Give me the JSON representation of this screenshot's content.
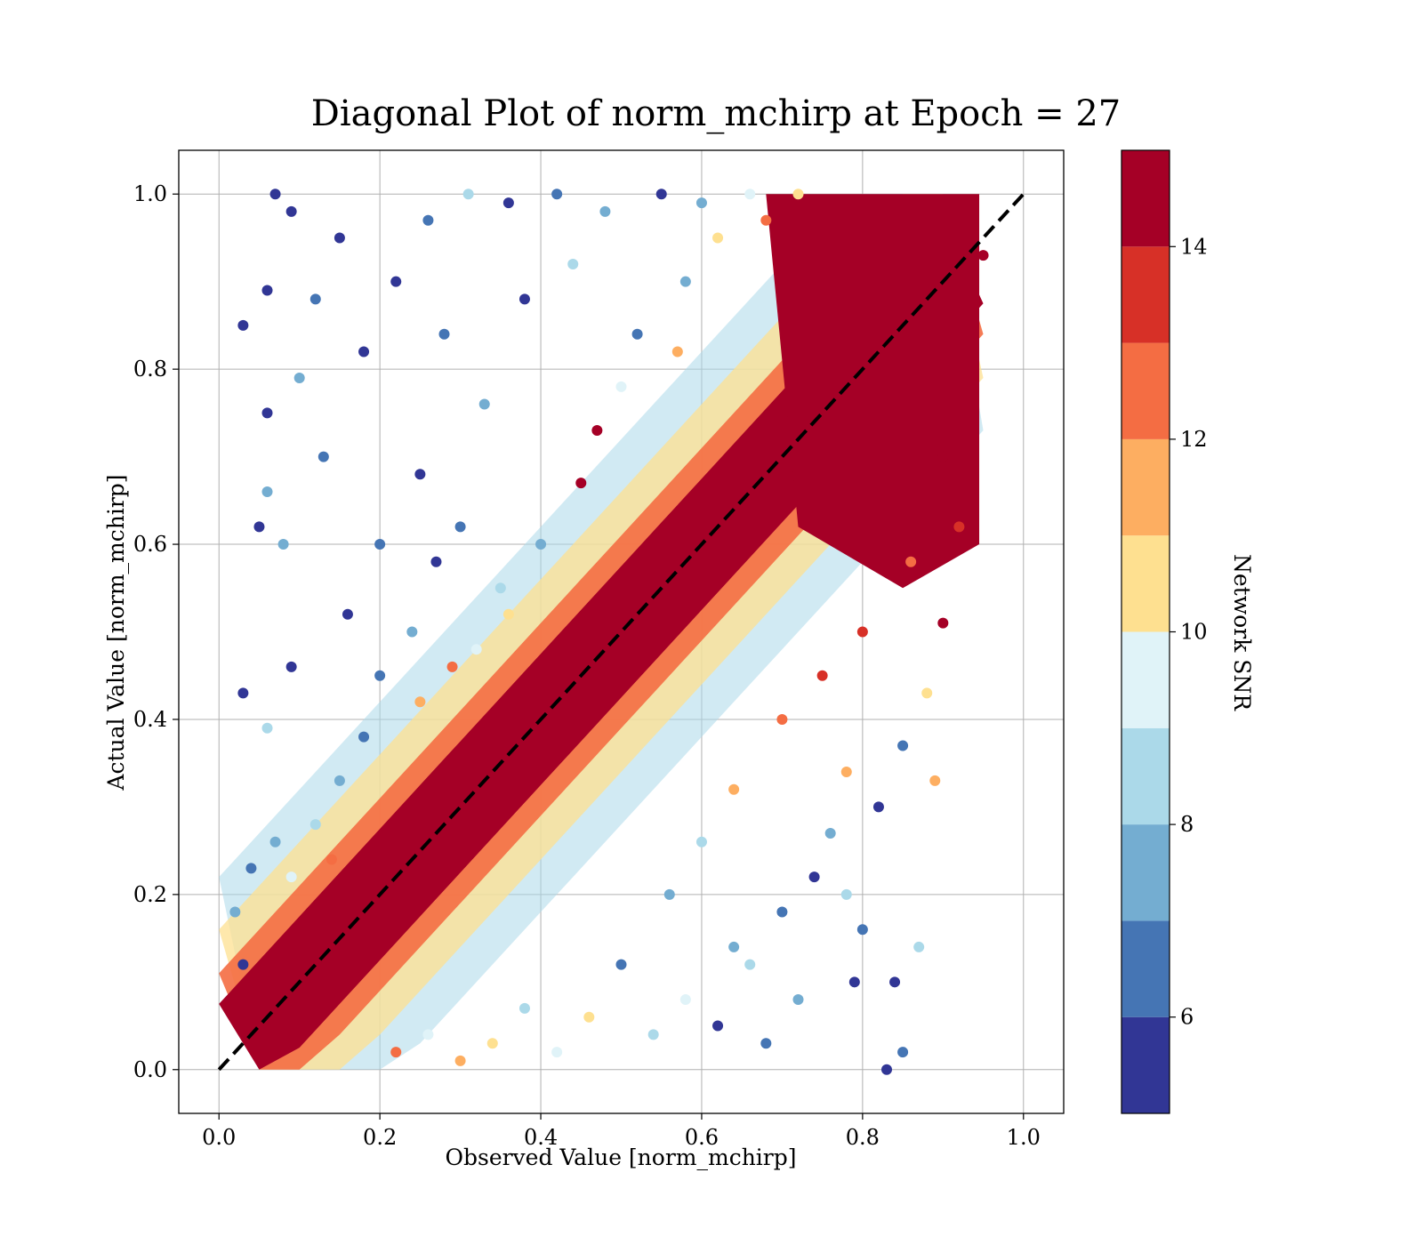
{
  "chart_data": {
    "type": "scatter",
    "title": "Diagonal Plot of norm_mchirp at Epoch = 27",
    "xlabel": "Observed Value [norm_mchirp]",
    "ylabel": "Actual Value [norm_mchirp]",
    "xlim": [
      -0.05,
      1.05
    ],
    "ylim": [
      -0.05,
      1.05
    ],
    "x_ticks": [
      "0.0",
      "0.2",
      "0.4",
      "0.6",
      "0.8",
      "1.0"
    ],
    "y_ticks": [
      "0.0",
      "0.2",
      "0.4",
      "0.6",
      "0.8",
      "1.0"
    ],
    "grid": true,
    "reference_line": {
      "style": "dashed",
      "color": "#000000",
      "from": [
        0,
        0
      ],
      "to": [
        1,
        1
      ]
    },
    "colorbar": {
      "label": "Network SNR",
      "range": [
        5,
        15
      ],
      "ticks": [
        "6",
        "8",
        "10",
        "12",
        "14"
      ],
      "levels": [
        {
          "from": 5,
          "to": 6,
          "color": "#313695"
        },
        {
          "from": 6,
          "to": 7,
          "color": "#4575b4"
        },
        {
          "from": 7,
          "to": 8,
          "color": "#74add1"
        },
        {
          "from": 8,
          "to": 9,
          "color": "#abd9e9"
        },
        {
          "from": 9,
          "to": 10,
          "color": "#e0f3f8"
        },
        {
          "from": 10,
          "to": 11,
          "color": "#fee090"
        },
        {
          "from": 11,
          "to": 12,
          "color": "#fdae61"
        },
        {
          "from": 12,
          "to": 13,
          "color": "#f46d43"
        },
        {
          "from": 13,
          "to": 14,
          "color": "#d73027"
        },
        {
          "from": 14,
          "to": 15,
          "color": "#a50026"
        }
      ]
    },
    "points": [
      {
        "x": 0.06,
        "y": 0.89,
        "snr": 5.5
      },
      {
        "x": 0.03,
        "y": 0.85,
        "snr": 5.5
      },
      {
        "x": 0.09,
        "y": 0.98,
        "snr": 5.5
      },
      {
        "x": 0.07,
        "y": 1.0,
        "snr": 5.5
      },
      {
        "x": 0.1,
        "y": 0.79,
        "snr": 7.5
      },
      {
        "x": 0.06,
        "y": 0.66,
        "snr": 7.5
      },
      {
        "x": 0.08,
        "y": 0.6,
        "snr": 7.5
      },
      {
        "x": 0.06,
        "y": 0.75,
        "snr": 5.5
      },
      {
        "x": 0.05,
        "y": 0.62,
        "snr": 5.5
      },
      {
        "x": 0.03,
        "y": 0.43,
        "snr": 5.5
      },
      {
        "x": 0.06,
        "y": 0.39,
        "snr": 8.5
      },
      {
        "x": 0.09,
        "y": 0.46,
        "snr": 5.5
      },
      {
        "x": 0.04,
        "y": 0.23,
        "snr": 6.5
      },
      {
        "x": 0.07,
        "y": 0.26,
        "snr": 7.5
      },
      {
        "x": 0.02,
        "y": 0.18,
        "snr": 7.5
      },
      {
        "x": 0.03,
        "y": 0.12,
        "snr": 5.5
      },
      {
        "x": 0.12,
        "y": 0.88,
        "snr": 6.5
      },
      {
        "x": 0.15,
        "y": 0.95,
        "snr": 5.5
      },
      {
        "x": 0.18,
        "y": 0.82,
        "snr": 5.5
      },
      {
        "x": 0.13,
        "y": 0.7,
        "snr": 6.5
      },
      {
        "x": 0.16,
        "y": 0.52,
        "snr": 5.5
      },
      {
        "x": 0.2,
        "y": 0.6,
        "snr": 6.5
      },
      {
        "x": 0.22,
        "y": 0.9,
        "snr": 5.5
      },
      {
        "x": 0.26,
        "y": 0.97,
        "snr": 6.5
      },
      {
        "x": 0.31,
        "y": 1.0,
        "snr": 8.5
      },
      {
        "x": 0.36,
        "y": 0.99,
        "snr": 5.5
      },
      {
        "x": 0.42,
        "y": 1.0,
        "snr": 6.5
      },
      {
        "x": 0.48,
        "y": 0.98,
        "snr": 7.5
      },
      {
        "x": 0.55,
        "y": 1.0,
        "snr": 5.5
      },
      {
        "x": 0.6,
        "y": 0.99,
        "snr": 7.5
      },
      {
        "x": 0.66,
        "y": 1.0,
        "snr": 9.5
      },
      {
        "x": 0.72,
        "y": 1.0,
        "snr": 10.5
      },
      {
        "x": 0.28,
        "y": 0.84,
        "snr": 6.5
      },
      {
        "x": 0.33,
        "y": 0.76,
        "snr": 7.5
      },
      {
        "x": 0.38,
        "y": 0.88,
        "snr": 5.5
      },
      {
        "x": 0.44,
        "y": 0.92,
        "snr": 8.5
      },
      {
        "x": 0.47,
        "y": 0.73,
        "snr": 14.5
      },
      {
        "x": 0.52,
        "y": 0.84,
        "snr": 6.5
      },
      {
        "x": 0.58,
        "y": 0.9,
        "snr": 7.5
      },
      {
        "x": 0.62,
        "y": 0.95,
        "snr": 10.5
      },
      {
        "x": 0.68,
        "y": 0.97,
        "snr": 12.5
      },
      {
        "x": 0.25,
        "y": 0.68,
        "snr": 5.5
      },
      {
        "x": 0.3,
        "y": 0.62,
        "snr": 6.5
      },
      {
        "x": 0.35,
        "y": 0.55,
        "snr": 8.5
      },
      {
        "x": 0.4,
        "y": 0.6,
        "snr": 7.5
      },
      {
        "x": 0.45,
        "y": 0.67,
        "snr": 14.5
      },
      {
        "x": 0.5,
        "y": 0.78,
        "snr": 9.5
      },
      {
        "x": 0.57,
        "y": 0.82,
        "snr": 11.5
      },
      {
        "x": 0.2,
        "y": 0.45,
        "snr": 6.5
      },
      {
        "x": 0.24,
        "y": 0.5,
        "snr": 7.5
      },
      {
        "x": 0.27,
        "y": 0.58,
        "snr": 5.5
      },
      {
        "x": 0.32,
        "y": 0.48,
        "snr": 9.5
      },
      {
        "x": 0.36,
        "y": 0.52,
        "snr": 10.5
      },
      {
        "x": 0.15,
        "y": 0.33,
        "snr": 7.5
      },
      {
        "x": 0.18,
        "y": 0.38,
        "snr": 6.5
      },
      {
        "x": 0.12,
        "y": 0.28,
        "snr": 8.5
      },
      {
        "x": 0.25,
        "y": 0.42,
        "snr": 11.5
      },
      {
        "x": 0.29,
        "y": 0.46,
        "snr": 12.5
      },
      {
        "x": 0.09,
        "y": 0.22,
        "snr": 9.5
      },
      {
        "x": 0.14,
        "y": 0.24,
        "snr": 12.5
      },
      {
        "x": 0.78,
        "y": 0.34,
        "snr": 11.5
      },
      {
        "x": 0.89,
        "y": 0.33,
        "snr": 11.5
      },
      {
        "x": 0.87,
        "y": 0.14,
        "snr": 8.5
      },
      {
        "x": 0.79,
        "y": 0.1,
        "snr": 5.5
      },
      {
        "x": 0.84,
        "y": 0.1,
        "snr": 5.5
      },
      {
        "x": 0.85,
        "y": 0.02,
        "snr": 6.5
      },
      {
        "x": 0.83,
        "y": 0.0,
        "snr": 5.5
      },
      {
        "x": 0.8,
        "y": 0.16,
        "snr": 6.5
      },
      {
        "x": 0.78,
        "y": 0.2,
        "snr": 8.5
      },
      {
        "x": 0.9,
        "y": 0.51,
        "snr": 14.5
      },
      {
        "x": 0.92,
        "y": 0.62,
        "snr": 13.5
      },
      {
        "x": 0.88,
        "y": 0.43,
        "snr": 10.5
      },
      {
        "x": 0.85,
        "y": 0.37,
        "snr": 6.5
      },
      {
        "x": 0.82,
        "y": 0.3,
        "snr": 5.5
      },
      {
        "x": 0.76,
        "y": 0.27,
        "snr": 7.5
      },
      {
        "x": 0.74,
        "y": 0.22,
        "snr": 5.5
      },
      {
        "x": 0.7,
        "y": 0.18,
        "snr": 6.5
      },
      {
        "x": 0.66,
        "y": 0.12,
        "snr": 8.5
      },
      {
        "x": 0.72,
        "y": 0.08,
        "snr": 7.5
      },
      {
        "x": 0.68,
        "y": 0.03,
        "snr": 6.5
      },
      {
        "x": 0.62,
        "y": 0.05,
        "snr": 5.5
      },
      {
        "x": 0.64,
        "y": 0.14,
        "snr": 7.5
      },
      {
        "x": 0.58,
        "y": 0.08,
        "snr": 9.5
      },
      {
        "x": 0.54,
        "y": 0.04,
        "snr": 8.5
      },
      {
        "x": 0.5,
        "y": 0.12,
        "snr": 6.5
      },
      {
        "x": 0.46,
        "y": 0.06,
        "snr": 10.5
      },
      {
        "x": 0.42,
        "y": 0.02,
        "snr": 9.5
      },
      {
        "x": 0.38,
        "y": 0.07,
        "snr": 8.5
      },
      {
        "x": 0.34,
        "y": 0.03,
        "snr": 10.5
      },
      {
        "x": 0.3,
        "y": 0.01,
        "snr": 11.5
      },
      {
        "x": 0.26,
        "y": 0.04,
        "snr": 9.5
      },
      {
        "x": 0.22,
        "y": 0.02,
        "snr": 12.5
      },
      {
        "x": 0.56,
        "y": 0.2,
        "snr": 7.5
      },
      {
        "x": 0.6,
        "y": 0.26,
        "snr": 8.5
      },
      {
        "x": 0.64,
        "y": 0.32,
        "snr": 11.5
      },
      {
        "x": 0.7,
        "y": 0.4,
        "snr": 12.5
      },
      {
        "x": 0.75,
        "y": 0.45,
        "snr": 13.5
      },
      {
        "x": 0.8,
        "y": 0.5,
        "snr": 13.5
      },
      {
        "x": 0.86,
        "y": 0.58,
        "snr": 12.5
      },
      {
        "x": 0.9,
        "y": 0.7,
        "snr": 14.5
      },
      {
        "x": 0.93,
        "y": 0.8,
        "snr": 14.5
      },
      {
        "x": 0.94,
        "y": 0.93,
        "snr": 14.5
      },
      {
        "x": 0.95,
        "y": 0.93,
        "snr": 14.5
      }
    ]
  }
}
